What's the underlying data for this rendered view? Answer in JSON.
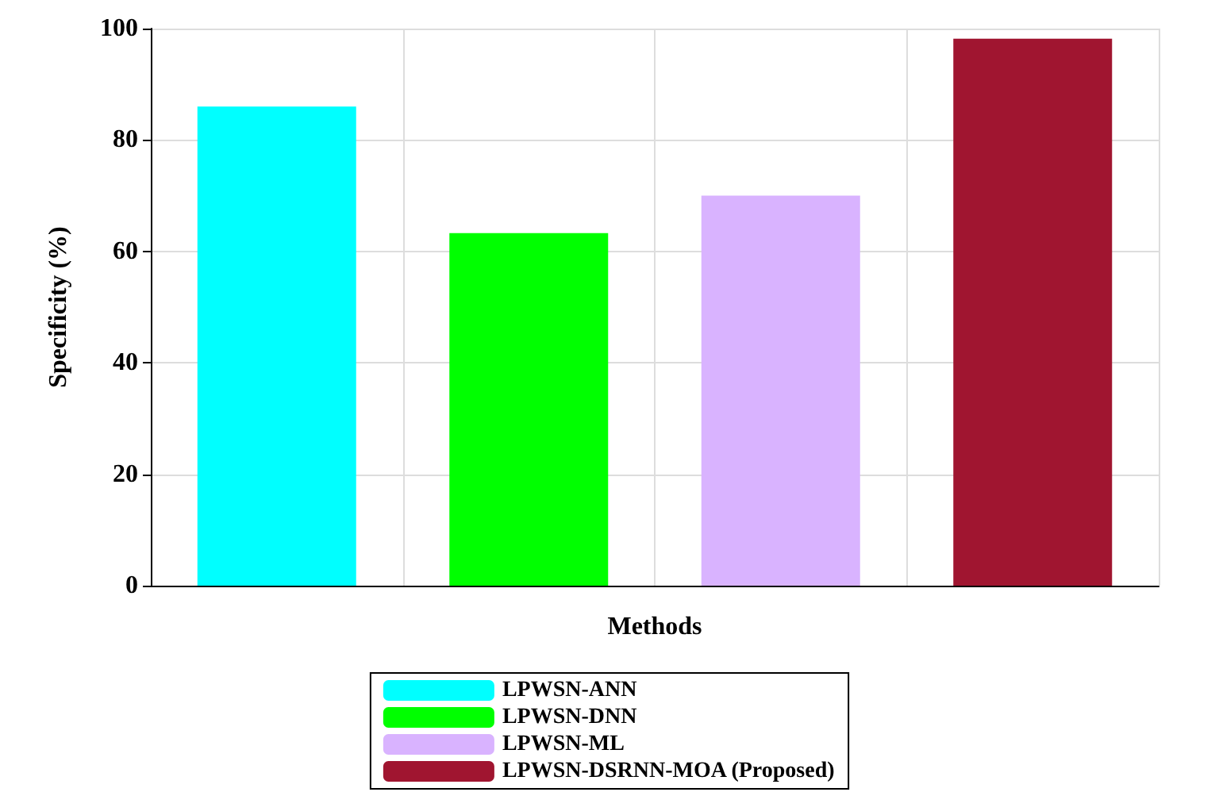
{
  "chart_data": {
    "type": "bar",
    "xlabel": "Methods",
    "ylabel": "Specificity (%)",
    "categories": [
      null,
      null,
      null,
      null
    ],
    "series": [
      {
        "name": "LPWSN-ANN",
        "color": "#00ffff",
        "values": [
          86,
          null,
          null,
          null
        ]
      },
      {
        "name": "LPWSN-DNN",
        "color": "#00ff00",
        "values": [
          null,
          63.3,
          null,
          null
        ]
      },
      {
        "name": "LPWSN-ML",
        "color": "#d9b3ff",
        "values": [
          null,
          null,
          70,
          null
        ]
      },
      {
        "name": "LPWSN-DSRNN-MOA (Proposed)",
        "color": "#a01530",
        "values": [
          null,
          null,
          null,
          98.2
        ]
      }
    ],
    "ylim": [
      0,
      100
    ],
    "yticks": [
      0,
      20,
      40,
      60,
      80,
      100
    ],
    "grid": true,
    "legend": "bottom"
  }
}
